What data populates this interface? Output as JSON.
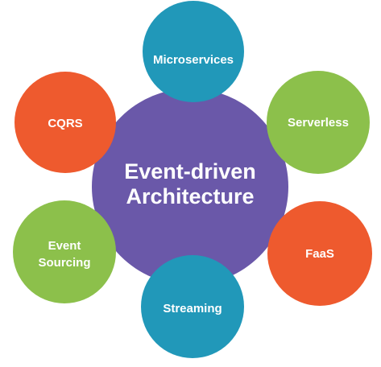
{
  "diagram": {
    "center": {
      "lines": [
        "Event-driven",
        "Architecture"
      ],
      "color": "#6a58a9"
    },
    "nodes": [
      {
        "lines": [
          "Microservices"
        ],
        "color": "#2198b9"
      },
      {
        "lines": [
          "Serverless"
        ],
        "color": "#8cc04b"
      },
      {
        "lines": [
          "FaaS"
        ],
        "color": "#ee5a2e"
      },
      {
        "lines": [
          "Streaming"
        ],
        "color": "#2198b9"
      },
      {
        "lines": [
          "Event",
          "Sourcing"
        ],
        "color": "#8cc04b"
      },
      {
        "lines": [
          "CQRS"
        ],
        "color": "#ee5a2e"
      }
    ]
  }
}
